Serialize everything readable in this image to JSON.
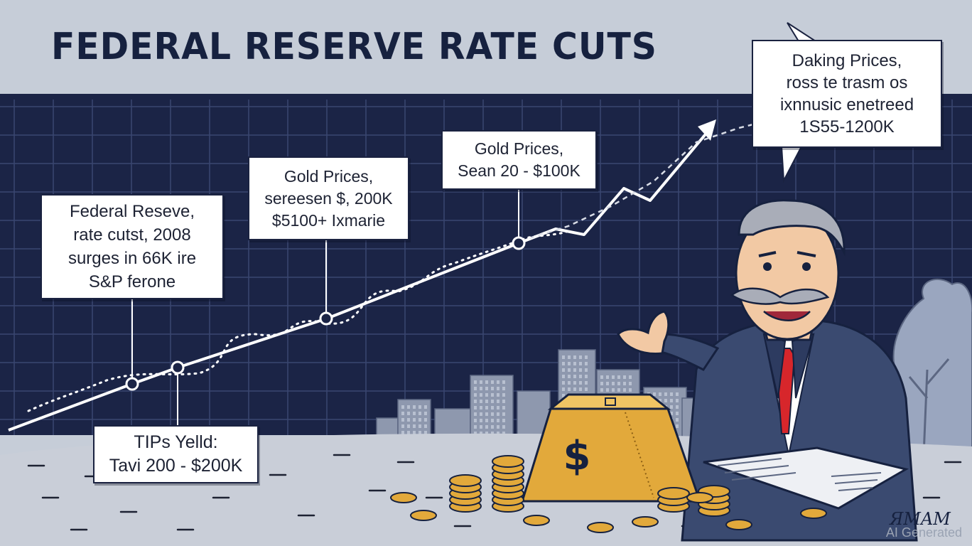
{
  "header": {
    "title": "FEDERAL RESERVE RATE CUTS"
  },
  "callouts": {
    "fed": [
      "Federal Reseve,",
      "rate cutst, 2008",
      "surges in 66K ire",
      "S&P ferone"
    ],
    "gold1": [
      "Gold Prices,",
      "sereesen $, 200K",
      "$5100+ Ixmarie"
    ],
    "gold2": [
      "Gold Prices,",
      "Sean 20 - $100K"
    ],
    "tips": [
      "TIPs Yelld:",
      "Tavi 200 - $200K"
    ],
    "bubble": [
      "Daking Prices,",
      "ross te trasm os",
      "ixnnusic enetreed",
      "1S55-1200K"
    ]
  },
  "coin_symbol": "$",
  "signature": "ЯMAM",
  "watermark": "AI Generated",
  "colors": {
    "chart_background": "#1b2446",
    "grid": "#3a4670",
    "banner": "#c6cdd8",
    "ground": "#c9ced8",
    "gold": "#e2a93b",
    "suit": "#3a4a70",
    "tie": "#d7262b",
    "ink": "#16213f"
  },
  "icons": [
    "gold-bar-icon",
    "dollar-sign-icon",
    "coin-stack-icon",
    "rising-arrow-icon",
    "tree-icon",
    "city-skyline-icon",
    "newspaper-icon"
  ]
}
